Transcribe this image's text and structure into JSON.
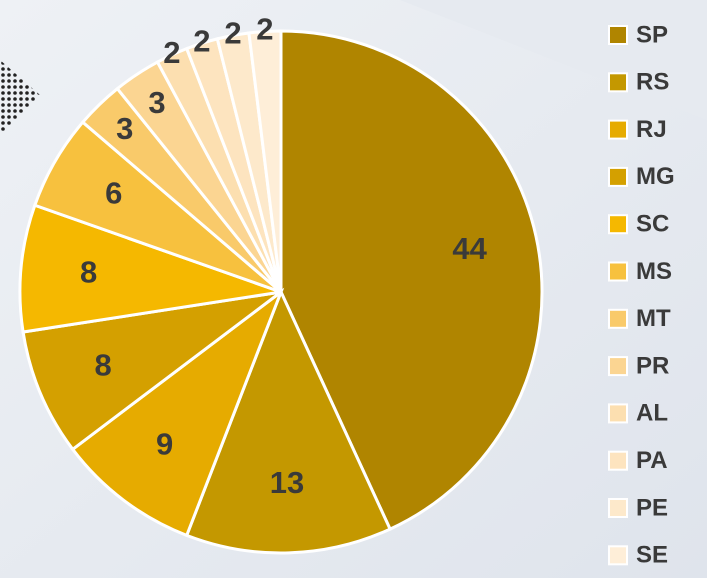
{
  "chart_data": {
    "type": "pie",
    "categories": [
      "SP",
      "RS",
      "RJ",
      "MG",
      "SC",
      "MS",
      "MT",
      "PR",
      "AL",
      "PA",
      "PE",
      "SE"
    ],
    "values": [
      44,
      13,
      9,
      8,
      8,
      6,
      3,
      3,
      2,
      2,
      2,
      2
    ],
    "colors": [
      "#b08500",
      "#c49800",
      "#e6ab00",
      "#d4a000",
      "#f5b800",
      "#f7c13e",
      "#f9ca6a",
      "#fbd592",
      "#fcdfb0",
      "#fde4bf",
      "#fde9cb",
      "#feeed8"
    ],
    "legend": "right"
  }
}
